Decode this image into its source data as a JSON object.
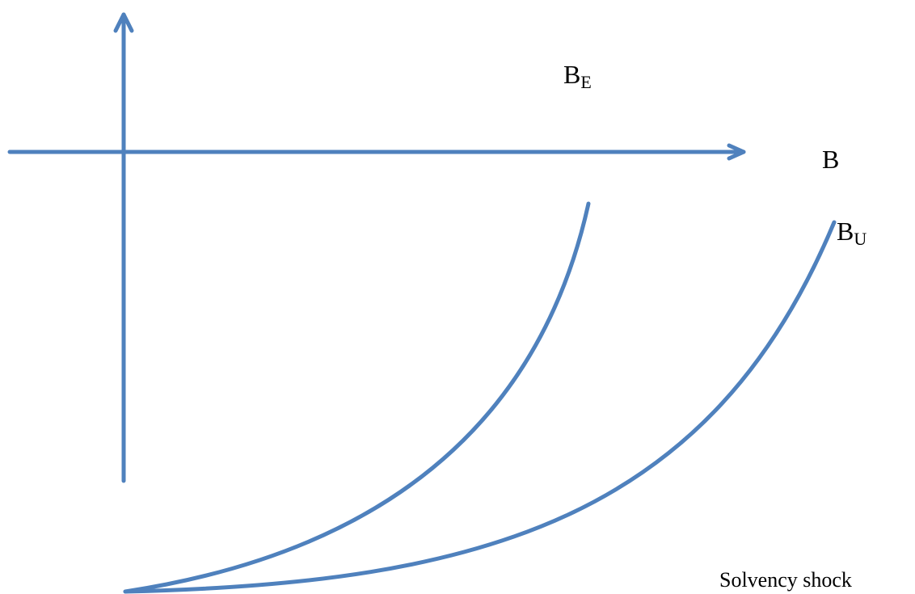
{
  "labels": [
    {
      "main": "B",
      "sub": "E"
    },
    {
      "main": "B"
    },
    {
      "main": "B",
      "sub": "U"
    }
  ],
  "note": "Solvency shock"
}
